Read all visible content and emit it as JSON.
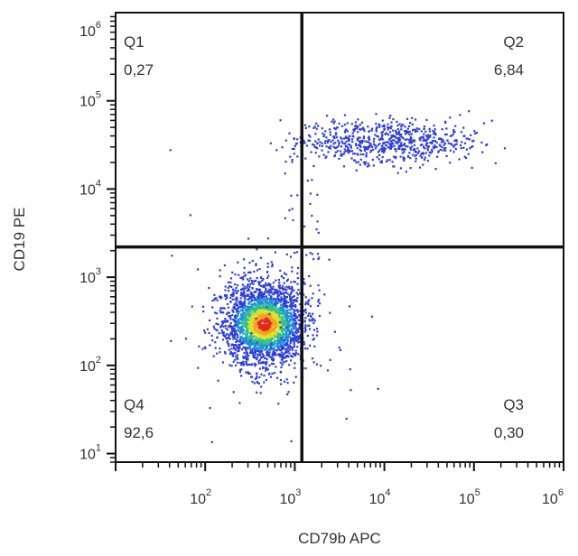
{
  "chart_data": {
    "type": "scatter",
    "subtype": "flow-cytometry-density-dot-plot",
    "xlabel": "CD79b APC",
    "ylabel": "CD19 PE",
    "xscale": "log",
    "yscale": "log",
    "xlim": [
      10,
      1000000
    ],
    "ylim": [
      8,
      1000000
    ],
    "x_ticks": [
      {
        "base": "10",
        "exp": "2",
        "value": 100
      },
      {
        "base": "10",
        "exp": "3",
        "value": 1000
      },
      {
        "base": "10",
        "exp": "4",
        "value": 10000
      },
      {
        "base": "10",
        "exp": "5",
        "value": 100000
      },
      {
        "base": "10",
        "exp": "6",
        "value": 1000000
      }
    ],
    "y_ticks": [
      {
        "base": "10",
        "exp": "1",
        "value": 10
      },
      {
        "base": "10",
        "exp": "2",
        "value": 100
      },
      {
        "base": "10",
        "exp": "3",
        "value": 1000
      },
      {
        "base": "10",
        "exp": "4",
        "value": 10000
      },
      {
        "base": "10",
        "exp": "5",
        "value": 100000
      },
      {
        "base": "10",
        "exp": "6",
        "value": 1000000
      }
    ],
    "gates": {
      "x": 1200,
      "y": 2200
    },
    "quadrants": [
      {
        "name": "Q1",
        "value": "0,27",
        "position": "top-left"
      },
      {
        "name": "Q2",
        "value": "6,84",
        "position": "top-right"
      },
      {
        "name": "Q3",
        "value": "0,30",
        "position": "bottom-right"
      },
      {
        "name": "Q4",
        "value": "92,6",
        "position": "bottom-left"
      }
    ],
    "populations": [
      {
        "name": "main",
        "center": [
          450,
          300
        ],
        "spread_decades": [
          0.22,
          0.2
        ],
        "density_scale": "blue-green-yellow-red"
      },
      {
        "name": "cd19-high",
        "center": [
          10000,
          35000
        ],
        "spread_decades": [
          0.5,
          0.12
        ],
        "density_scale": "blue"
      }
    ],
    "grid": false,
    "legend": "none"
  }
}
